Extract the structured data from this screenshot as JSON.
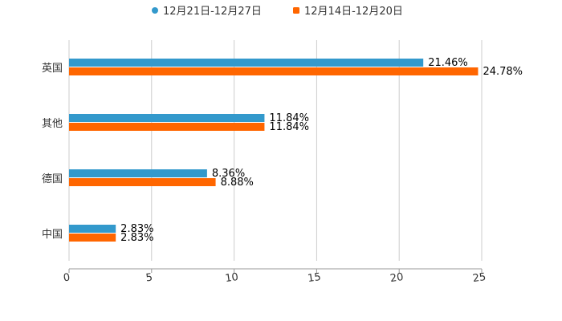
{
  "chart_data": {
    "type": "bar",
    "orientation": "horizontal",
    "categories": [
      "英国",
      "其他",
      "德国",
      "中国"
    ],
    "series": [
      {
        "name": "12月21日-12月27日",
        "color": "#3399CC",
        "values": [
          21.46,
          11.84,
          8.36,
          2.83
        ],
        "labels": [
          "21.46%",
          "11.84%",
          "8.36%",
          "2.83%"
        ]
      },
      {
        "name": "12月14日-12月20日",
        "color": "#FF6600",
        "values": [
          24.78,
          11.84,
          8.88,
          2.83
        ],
        "labels": [
          "24.78%",
          "11.84%",
          "8.88%",
          "2.83%"
        ]
      }
    ],
    "xlim": [
      0,
      25
    ],
    "xticks": [
      0,
      5,
      10,
      15,
      20,
      25
    ],
    "xtick_labels": [
      "0",
      "5",
      "10",
      "15",
      "20",
      "25"
    ],
    "grid": true,
    "legend": "top-center",
    "title": "",
    "xlabel": "",
    "ylabel": ""
  }
}
